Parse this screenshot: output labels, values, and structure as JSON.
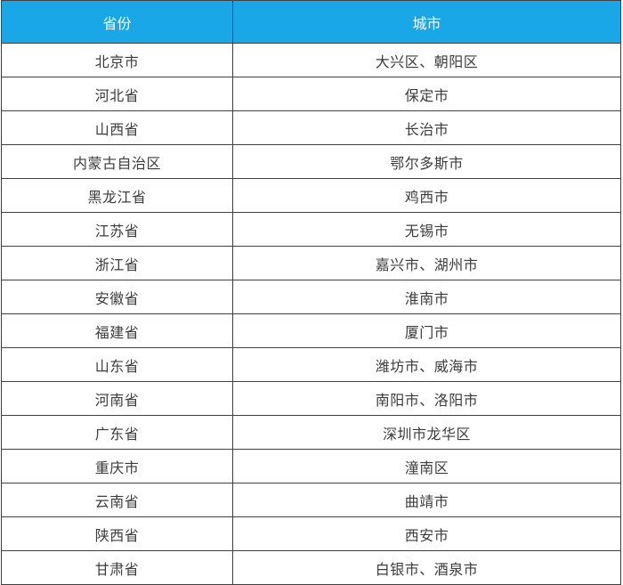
{
  "table": {
    "columns": [
      {
        "label": "省份"
      },
      {
        "label": "城市"
      }
    ],
    "rows": [
      [
        "北京市",
        "大兴区、朝阳区"
      ],
      [
        "河北省",
        "保定市"
      ],
      [
        "山西省",
        "长治市"
      ],
      [
        "内蒙古自治区",
        "鄂尔多斯市"
      ],
      [
        "黑龙江省",
        "鸡西市"
      ],
      [
        "江苏省",
        "无锡市"
      ],
      [
        "浙江省",
        "嘉兴市、湖州市"
      ],
      [
        "安徽省",
        "淮南市"
      ],
      [
        "福建省",
        "厦门市"
      ],
      [
        "山东省",
        "潍坊市、威海市"
      ],
      [
        "河南省",
        "南阳市、洛阳市"
      ],
      [
        "广东省",
        "深圳市龙华区"
      ],
      [
        "重庆市",
        "潼南区"
      ],
      [
        "云南省",
        "曲靖市"
      ],
      [
        "陕西省",
        "西安市"
      ],
      [
        "甘肃省",
        "白银市、酒泉市"
      ]
    ],
    "colors": {
      "header_bg": "#1aa7e8",
      "header_text": "#ffffff",
      "border": "#404040",
      "cell_text": "#3c3c3c"
    }
  }
}
